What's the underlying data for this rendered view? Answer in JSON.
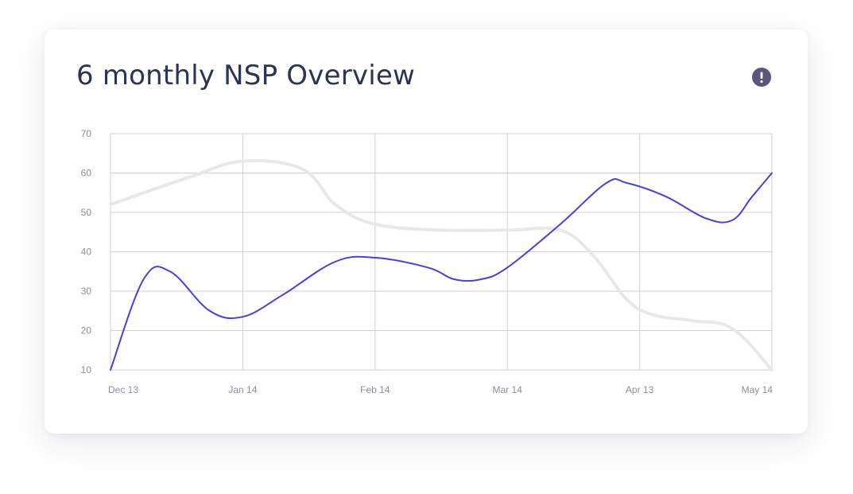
{
  "card": {
    "title": "6 monthly NSP Overview",
    "info_icon": "exclamation-circle-icon"
  },
  "colors": {
    "title": "#2b3453",
    "primary_series": "#4a3ee0",
    "secondary_series": "#e8e8ea",
    "grid": "#cfcfd4",
    "info_icon_bg": "#5a567e"
  },
  "chart_data": {
    "type": "line",
    "x_labels": [
      "Dec 13",
      "Jan 14",
      "Feb 14",
      "Mar 14",
      "Apr 13",
      "May 14"
    ],
    "y_ticks": [
      10,
      20,
      30,
      40,
      50,
      60,
      70
    ],
    "ylim": [
      10,
      70
    ],
    "grid": true,
    "series": [
      {
        "color": "#e8e8ea",
        "points": [
          [
            0,
            52
          ],
          [
            0.6,
            59
          ],
          [
            1,
            63
          ],
          [
            1.45,
            61
          ],
          [
            1.7,
            52
          ],
          [
            2,
            47
          ],
          [
            2.5,
            45.5
          ],
          [
            3,
            45.5
          ],
          [
            3.4,
            45.5
          ],
          [
            3.65,
            39
          ],
          [
            3.9,
            28
          ],
          [
            4.1,
            24
          ],
          [
            4.4,
            22.5
          ],
          [
            4.7,
            20.5
          ],
          [
            5,
            10
          ]
        ]
      },
      {
        "color": "#4a3ee0",
        "points": [
          [
            0,
            10
          ],
          [
            0.25,
            33
          ],
          [
            0.45,
            35
          ],
          [
            0.75,
            25
          ],
          [
            1,
            23.5
          ],
          [
            1.3,
            29
          ],
          [
            1.7,
            37.5
          ],
          [
            2,
            38.5
          ],
          [
            2.4,
            36
          ],
          [
            2.6,
            33
          ],
          [
            2.8,
            33
          ],
          [
            3,
            36
          ],
          [
            3.4,
            47
          ],
          [
            3.75,
            57.5
          ],
          [
            3.9,
            57.5
          ],
          [
            4.2,
            54
          ],
          [
            4.5,
            48.5
          ],
          [
            4.7,
            48
          ],
          [
            4.85,
            54
          ],
          [
            5,
            60
          ]
        ]
      }
    ]
  }
}
